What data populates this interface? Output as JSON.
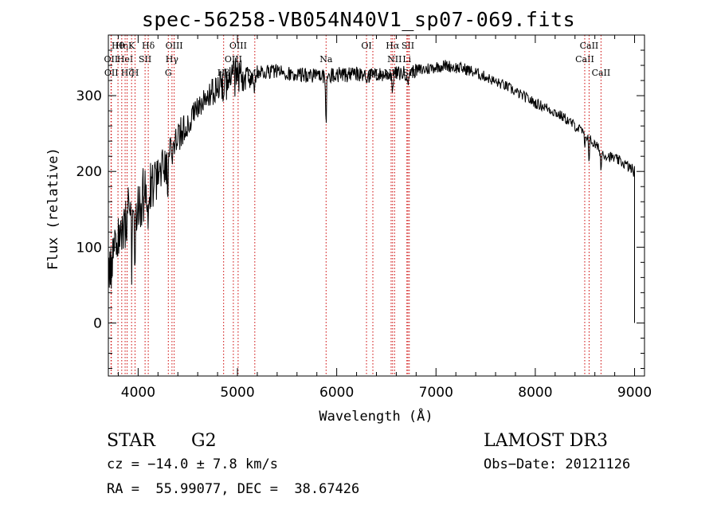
{
  "chart_data": {
    "type": "line",
    "title": "spec-56258-VB054N40V1_sp07-069.fits",
    "xlabel": "Wavelength (Å)",
    "ylabel": "Flux (relative)",
    "xlim": [
      3700,
      9100
    ],
    "ylim": [
      -70,
      380
    ],
    "xticks": [
      4000,
      5000,
      6000,
      7000,
      8000,
      9000
    ],
    "yticks": [
      0,
      100,
      200,
      300
    ],
    "line_color": "#cc0000",
    "series": [
      {
        "name": "flux",
        "x": [
          3700,
          3800,
          3900,
          4000,
          4100,
          4200,
          4300,
          4400,
          4500,
          4600,
          4700,
          4800,
          4900,
          5000,
          5100,
          5200,
          5300,
          5400,
          5500,
          5600,
          5700,
          5800,
          5900,
          6000,
          6100,
          6200,
          6300,
          6400,
          6500,
          6600,
          6700,
          6800,
          6900,
          7000,
          7100,
          7200,
          7300,
          7400,
          7500,
          7600,
          7700,
          7800,
          7900,
          8000,
          8100,
          8200,
          8300,
          8400,
          8500,
          8600,
          8700,
          8800,
          8900,
          9000
        ],
        "y": [
          60,
          110,
          140,
          160,
          175,
          190,
          215,
          245,
          265,
          285,
          300,
          310,
          318,
          325,
          325,
          328,
          332,
          333,
          330,
          328,
          327,
          326,
          325,
          328,
          327,
          328,
          326,
          327,
          328,
          329,
          330,
          333,
          335,
          338,
          340,
          337,
          335,
          330,
          325,
          318,
          313,
          305,
          298,
          290,
          285,
          278,
          270,
          260,
          250,
          235,
          222,
          217,
          210,
          200
        ],
        "noise": [
          28,
          35,
          40,
          40,
          35,
          30,
          28,
          22,
          18,
          16,
          15,
          20,
          35,
          25,
          18,
          12,
          10,
          10,
          10,
          10,
          10,
          10,
          10,
          10,
          10,
          10,
          10,
          10,
          10,
          10,
          10,
          9,
          9,
          8,
          8,
          8,
          8,
          8,
          7,
          7,
          7,
          7,
          7,
          7,
          7,
          7,
          7,
          7,
          7,
          7,
          7,
          7,
          7,
          8
        ]
      }
    ],
    "dips": [
      {
        "x": 3934,
        "depth": 60
      },
      {
        "x": 3969,
        "depth": 60
      },
      {
        "x": 4102,
        "depth": 40
      },
      {
        "x": 4300,
        "depth": 35
      },
      {
        "x": 4341,
        "depth": 35
      },
      {
        "x": 4861,
        "depth": 40
      },
      {
        "x": 5175,
        "depth": 25
      },
      {
        "x": 5893,
        "depth": 65
      },
      {
        "x": 6563,
        "depth": 30
      },
      {
        "x": 6720,
        "depth": 25
      },
      {
        "x": 8498,
        "depth": 25
      },
      {
        "x": 8542,
        "depth": 30
      },
      {
        "x": 8662,
        "depth": 28
      }
    ],
    "lines": [
      {
        "x": 3727,
        "row": 1,
        "label": "OII"
      },
      {
        "x": 3730,
        "row": 2,
        "label": "OII"
      },
      {
        "x": 3797,
        "row": 0,
        "label": "Hθ"
      },
      {
        "x": 3835,
        "row": 0,
        "label": "Hη"
      },
      {
        "x": 3869,
        "row": 1,
        "label": "HeI"
      },
      {
        "x": 3889,
        "row": 2,
        "label": "Hζ"
      },
      {
        "x": 3934,
        "row": 0,
        "label": "K"
      },
      {
        "x": 3969,
        "row": 2,
        "label": "H"
      },
      {
        "x": 4070,
        "row": 1,
        "label": "SII"
      },
      {
        "x": 4102,
        "row": 0,
        "label": "Hδ"
      },
      {
        "x": 4304,
        "row": 2,
        "label": "G"
      },
      {
        "x": 4341,
        "row": 1,
        "label": "Hγ"
      },
      {
        "x": 4363,
        "row": 0,
        "label": "OIII"
      },
      {
        "x": 4861,
        "row": 2,
        "label": "Hβ"
      },
      {
        "x": 4959,
        "row": 1,
        "label": "OIII"
      },
      {
        "x": 5007,
        "row": 0,
        "label": "OIII"
      },
      {
        "x": 5175,
        "row": 2,
        "label": "Mg"
      },
      {
        "x": 5893,
        "row": 1,
        "label": "Na"
      },
      {
        "x": 6300,
        "row": 0,
        "label": "OI"
      },
      {
        "x": 6364,
        "row": 2,
        "label": "OI"
      },
      {
        "x": 6548,
        "row": 2,
        "label": "NII"
      },
      {
        "x": 6563,
        "row": 0,
        "label": "Hα"
      },
      {
        "x": 6583,
        "row": 1,
        "label": "NII"
      },
      {
        "x": 6707,
        "row": 1,
        "label": "Li"
      },
      {
        "x": 6717,
        "row": 0,
        "label": "SII"
      },
      {
        "x": 6731,
        "row": 2,
        "label": "SII"
      },
      {
        "x": 8498,
        "row": 1,
        "label": "CaII"
      },
      {
        "x": 8542,
        "row": 0,
        "label": "CaII"
      },
      {
        "x": 8662,
        "row": 2,
        "label": "CaII"
      }
    ]
  },
  "info": {
    "object_type": "STAR",
    "subclass": "G2",
    "survey": "LAMOST DR3",
    "redshift": "cz = −14.0 ± 7.8 km/s",
    "obs_date": "Obs−Date: 20121126",
    "coords": "RA =  55.99077, DEC =  38.67426"
  }
}
